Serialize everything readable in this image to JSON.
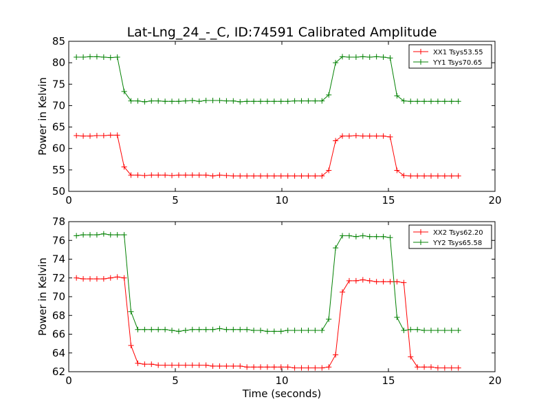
{
  "figure_title": "Lat-Lng_24_-_C, ID:74591 Calibrated Amplitude",
  "chart_data": [
    {
      "type": "line",
      "title": "Lat-Lng_24_-_C, ID:74591 Calibrated Amplitude",
      "xlabel": "",
      "ylabel": "Power in Kelvin",
      "xlim": [
        0,
        20
      ],
      "ylim": [
        50,
        85
      ],
      "xticks": [
        0,
        5,
        10,
        15,
        20
      ],
      "yticks": [
        50,
        55,
        60,
        65,
        70,
        75,
        80,
        85
      ],
      "grid": false,
      "legend_position": "top-right",
      "x": [
        0.36,
        0.68,
        1.0,
        1.32,
        1.64,
        1.96,
        2.28,
        2.6,
        2.92,
        3.24,
        3.56,
        3.88,
        4.2,
        4.52,
        4.84,
        5.16,
        5.48,
        5.8,
        6.12,
        6.44,
        6.76,
        7.08,
        7.4,
        7.72,
        8.04,
        8.36,
        8.68,
        9.0,
        9.32,
        9.64,
        9.96,
        10.28,
        10.6,
        10.92,
        11.24,
        11.56,
        11.88,
        12.2,
        12.52,
        12.84,
        13.16,
        13.48,
        13.8,
        14.12,
        14.44,
        14.76,
        15.08,
        15.4,
        15.72,
        16.04,
        16.36,
        16.68,
        17.0,
        17.32,
        17.64,
        17.96,
        18.28
      ],
      "series": [
        {
          "name": "XX1 Tsys53.55",
          "color": "#ff0000",
          "values": [
            63.0,
            62.9,
            62.9,
            63.0,
            63.0,
            63.1,
            63.1,
            55.7,
            53.8,
            53.8,
            53.7,
            53.8,
            53.8,
            53.8,
            53.7,
            53.8,
            53.8,
            53.8,
            53.8,
            53.8,
            53.6,
            53.8,
            53.7,
            53.6,
            53.6,
            53.6,
            53.6,
            53.6,
            53.6,
            53.6,
            53.6,
            53.6,
            53.6,
            53.6,
            53.6,
            53.6,
            53.6,
            54.9,
            61.8,
            62.9,
            62.9,
            63.0,
            62.9,
            62.9,
            62.9,
            62.9,
            62.7,
            54.9,
            53.7,
            53.6,
            53.6,
            53.6,
            53.6,
            53.6,
            53.6,
            53.6,
            53.6
          ]
        },
        {
          "name": "YY1 Tsys70.65",
          "color": "#008000",
          "values": [
            81.3,
            81.3,
            81.4,
            81.4,
            81.3,
            81.2,
            81.3,
            73.3,
            71.1,
            71.1,
            70.9,
            71.1,
            71.1,
            71.0,
            71.0,
            71.0,
            71.1,
            71.2,
            71.0,
            71.2,
            71.2,
            71.2,
            71.1,
            71.1,
            70.9,
            71.0,
            71.0,
            71.0,
            71.0,
            71.0,
            71.0,
            71.0,
            71.1,
            71.1,
            71.1,
            71.1,
            71.1,
            72.5,
            80.0,
            81.4,
            81.3,
            81.3,
            81.4,
            81.3,
            81.4,
            81.3,
            81.1,
            72.3,
            71.1,
            71.0,
            71.0,
            71.0,
            71.0,
            71.0,
            71.0,
            71.0,
            71.0
          ]
        }
      ]
    },
    {
      "type": "line",
      "title": "",
      "xlabel": "Time (seconds)",
      "ylabel": "Power in Kelvin",
      "xlim": [
        0,
        20
      ],
      "ylim": [
        62,
        78
      ],
      "xticks": [
        0,
        5,
        10,
        15,
        20
      ],
      "yticks": [
        62,
        64,
        66,
        68,
        70,
        72,
        74,
        76,
        78
      ],
      "grid": false,
      "legend_position": "top-right",
      "x": [
        0.36,
        0.68,
        1.0,
        1.32,
        1.64,
        1.96,
        2.28,
        2.6,
        2.92,
        3.24,
        3.56,
        3.88,
        4.2,
        4.52,
        4.84,
        5.16,
        5.48,
        5.8,
        6.12,
        6.44,
        6.76,
        7.08,
        7.4,
        7.72,
        8.04,
        8.36,
        8.68,
        9.0,
        9.32,
        9.64,
        9.96,
        10.28,
        10.6,
        10.92,
        11.24,
        11.56,
        11.88,
        12.2,
        12.52,
        12.84,
        13.16,
        13.48,
        13.8,
        14.12,
        14.44,
        14.76,
        15.08,
        15.4,
        15.72,
        16.04,
        16.36,
        16.68,
        17.0,
        17.32,
        17.64,
        17.96,
        18.28
      ],
      "series": [
        {
          "name": "XX2 Tsys62.20",
          "color": "#ff0000",
          "values": [
            72.0,
            71.9,
            71.9,
            71.9,
            71.9,
            72.0,
            72.1,
            72.0,
            64.8,
            62.9,
            62.8,
            62.8,
            62.7,
            62.7,
            62.7,
            62.7,
            62.7,
            62.7,
            62.7,
            62.7,
            62.6,
            62.6,
            62.6,
            62.6,
            62.6,
            62.5,
            62.5,
            62.5,
            62.5,
            62.5,
            62.5,
            62.5,
            62.4,
            62.4,
            62.4,
            62.4,
            62.4,
            62.5,
            63.8,
            70.5,
            71.7,
            71.7,
            71.8,
            71.7,
            71.6,
            71.6,
            71.6,
            71.6,
            71.5,
            63.6,
            62.5,
            62.5,
            62.5,
            62.4,
            62.4,
            62.4,
            62.4
          ]
        },
        {
          "name": "YY2 Tsys65.58",
          "color": "#008000",
          "values": [
            76.5,
            76.6,
            76.6,
            76.6,
            76.7,
            76.6,
            76.6,
            76.6,
            68.4,
            66.5,
            66.5,
            66.5,
            66.5,
            66.5,
            66.4,
            66.3,
            66.4,
            66.5,
            66.5,
            66.5,
            66.5,
            66.6,
            66.5,
            66.5,
            66.5,
            66.5,
            66.4,
            66.4,
            66.3,
            66.3,
            66.3,
            66.4,
            66.4,
            66.4,
            66.4,
            66.4,
            66.4,
            67.6,
            75.2,
            76.5,
            76.5,
            76.4,
            76.5,
            76.4,
            76.4,
            76.4,
            76.3,
            67.8,
            66.4,
            66.5,
            66.5,
            66.4,
            66.4,
            66.4,
            66.4,
            66.4,
            66.4
          ]
        }
      ]
    }
  ]
}
